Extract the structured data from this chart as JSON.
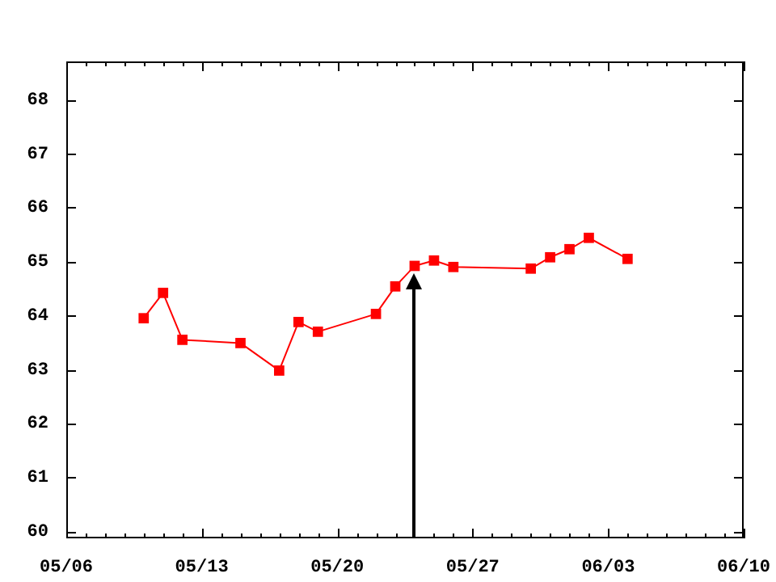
{
  "chart_data": {
    "type": "line",
    "x": [
      "--05-10",
      "--05-11",
      "--05-12",
      "--05-15",
      "--05-17",
      "--05-18",
      "--05-19",
      "--05-22",
      "--05-23",
      "--05-24",
      "--05-25",
      "--05-26",
      "--05-30",
      "--05-31",
      "--06-01",
      "--06-02",
      "--06-04"
    ],
    "series": [
      {
        "color": "#ff0000",
        "values": [
          63.95,
          64.42,
          63.55,
          63.49,
          62.98,
          63.88,
          63.7,
          64.03,
          64.54,
          64.92,
          65.02,
          64.9,
          64.87,
          65.08,
          65.23,
          65.44,
          65.05
        ]
      }
    ],
    "marker": "square",
    "line_style": "solid",
    "xlim": [
      "--05-06",
      "--06-10"
    ],
    "xticks": [
      {
        "value": "--05-06",
        "label": "05/06"
      },
      {
        "value": "--05-13",
        "label": "05/13"
      },
      {
        "value": "--05-20",
        "label": "05/20"
      },
      {
        "value": "--05-27",
        "label": "05/27"
      },
      {
        "value": "--06-03",
        "label": "06/03"
      },
      {
        "value": "--06-10",
        "label": "06/10"
      }
    ],
    "ylim": [
      59.87,
      68.71
    ],
    "yticks": [
      60,
      61,
      62,
      63,
      64,
      65,
      66,
      67,
      68
    ],
    "ref_lines": [
      {
        "axis": "x",
        "value": "--05-24",
        "color": "#000000"
      }
    ]
  }
}
